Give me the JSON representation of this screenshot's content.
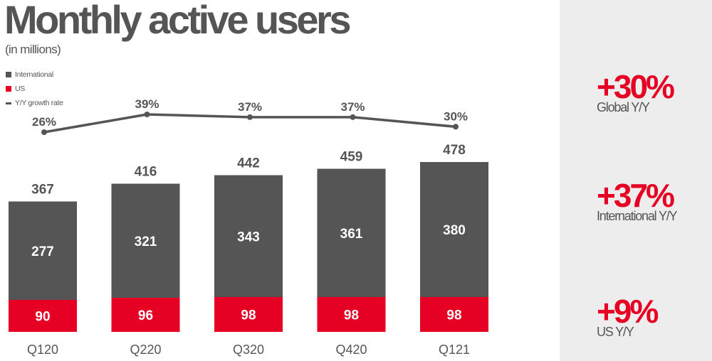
{
  "header": {
    "title": "Monthly active users",
    "subtitle": "(in millions)"
  },
  "legend": [
    {
      "label": "International",
      "color": "#555555",
      "shape": "square"
    },
    {
      "label": "US",
      "color": "#e60023",
      "shape": "square"
    },
    {
      "label": "Y/Y growth rate",
      "color": "#555555",
      "shape": "line"
    }
  ],
  "kpis": [
    {
      "value": "+30%",
      "label": "Global Y/Y"
    },
    {
      "value": "+37%",
      "label": "International Y/Y"
    },
    {
      "value": "+9%",
      "label": "US Y/Y"
    }
  ],
  "chart_data": {
    "type": "bar",
    "stacked": true,
    "title": "Monthly active users",
    "subtitle": "(in millions)",
    "xlabel": "",
    "ylabel": "",
    "categories": [
      "Q120",
      "Q220",
      "Q320",
      "Q420",
      "Q121"
    ],
    "series": [
      {
        "name": "US",
        "color": "#e60023",
        "values": [
          90,
          96,
          98,
          98,
          98
        ]
      },
      {
        "name": "International",
        "color": "#555555",
        "values": [
          277,
          321,
          343,
          361,
          380
        ]
      }
    ],
    "totals": [
      367,
      416,
      442,
      459,
      478
    ],
    "line_series": {
      "name": "Y/Y growth rate",
      "color": "#555555",
      "values": [
        26,
        39,
        37,
        37,
        30
      ],
      "labels": [
        "26%",
        "39%",
        "37%",
        "37%",
        "30%"
      ]
    },
    "grid": false,
    "legend_position": "top-left"
  }
}
